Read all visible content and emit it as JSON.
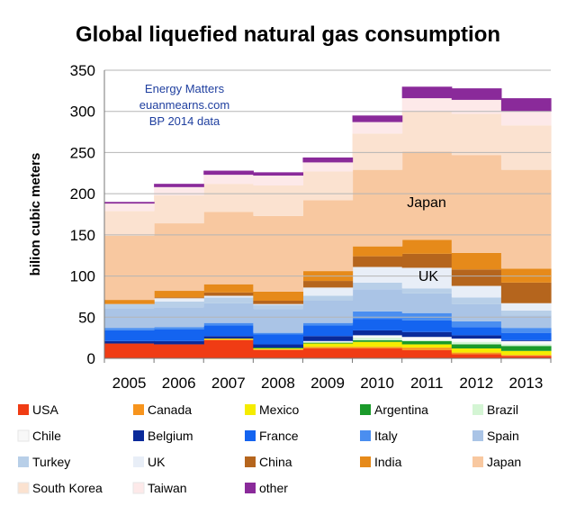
{
  "chart_data": {
    "type": "area",
    "title": "Global liquefied natural gas consumption",
    "ylabel": "bilion cubic meters",
    "xlabel": "",
    "ylim": [
      0,
      350
    ],
    "yticks": [
      0,
      50,
      100,
      150,
      200,
      250,
      300,
      350
    ],
    "categories": [
      "2005",
      "2006",
      "2007",
      "2008",
      "2009",
      "2010",
      "2011",
      "2012",
      "2013"
    ],
    "notes": [
      "Energy Matters",
      "euanmearns.com",
      "BP 2014 data"
    ],
    "annotations": [
      "Japan",
      "UK"
    ],
    "grid": true,
    "stacked": true,
    "legend_position": "bottom",
    "series": [
      {
        "name": "USA",
        "color": "#f03c14",
        "values": [
          18,
          17,
          22,
          10,
          12,
          12,
          10,
          5,
          3
        ]
      },
      {
        "name": "Canada",
        "color": "#f7941d",
        "values": [
          0,
          0,
          1,
          1,
          2,
          2,
          3,
          2,
          1
        ]
      },
      {
        "name": "Mexico",
        "color": "#f5ec00",
        "values": [
          0,
          0,
          1,
          1,
          4,
          6,
          4,
          5,
          5
        ]
      },
      {
        "name": "Argentina",
        "color": "#1a9a2a",
        "values": [
          0,
          0,
          0,
          1,
          1,
          2,
          4,
          5,
          6
        ]
      },
      {
        "name": "Brazil",
        "color": "#d4f5d4",
        "values": [
          0,
          0,
          0,
          0,
          1,
          3,
          1,
          3,
          2
        ]
      },
      {
        "name": "Chile",
        "color": "#f8f8f8",
        "values": [
          0,
          0,
          0,
          0,
          1,
          3,
          4,
          4,
          4
        ]
      },
      {
        "name": "Belgium",
        "color": "#0a2a9a",
        "values": [
          3,
          4,
          3,
          4,
          6,
          6,
          6,
          4,
          1
        ]
      },
      {
        "name": "France",
        "color": "#1464f0",
        "values": [
          13,
          14,
          13,
          12,
          13,
          14,
          14,
          10,
          9
        ]
      },
      {
        "name": "Italy",
        "color": "#4a8ef0",
        "values": [
          3,
          3,
          3,
          2,
          3,
          9,
          9,
          7,
          6
        ]
      },
      {
        "name": "Spain",
        "color": "#aac4e6",
        "values": [
          24,
          24,
          24,
          29,
          27,
          27,
          24,
          21,
          15
        ]
      },
      {
        "name": "Turkey",
        "color": "#b8cfe8",
        "values": [
          5,
          7,
          7,
          5,
          6,
          8,
          6,
          8,
          6
        ]
      },
      {
        "name": "UK",
        "color": "#e8eef7",
        "values": [
          0,
          4,
          2,
          1,
          10,
          19,
          25,
          14,
          9
        ]
      },
      {
        "name": "China",
        "color": "#b5651d",
        "values": [
          0,
          1,
          4,
          4,
          8,
          13,
          17,
          20,
          25
        ]
      },
      {
        "name": "India",
        "color": "#e68a1a",
        "values": [
          5,
          8,
          10,
          11,
          12,
          12,
          17,
          20,
          17
        ]
      },
      {
        "name": "Japan",
        "color": "#f8c8a0",
        "values": [
          78,
          82,
          88,
          92,
          86,
          93,
          107,
          119,
          120
        ]
      },
      {
        "name": "South Korea",
        "color": "#fbe2d0",
        "values": [
          30,
          34,
          34,
          37,
          35,
          44,
          49,
          50,
          54
        ]
      },
      {
        "name": "Taiwan",
        "color": "#fde9e9",
        "values": [
          9,
          10,
          11,
          12,
          11,
          14,
          16,
          17,
          17
        ]
      },
      {
        "name": "other",
        "color": "#8a2a9a",
        "values": [
          2,
          4,
          5,
          4,
          6,
          8,
          14,
          14,
          16
        ]
      }
    ]
  }
}
